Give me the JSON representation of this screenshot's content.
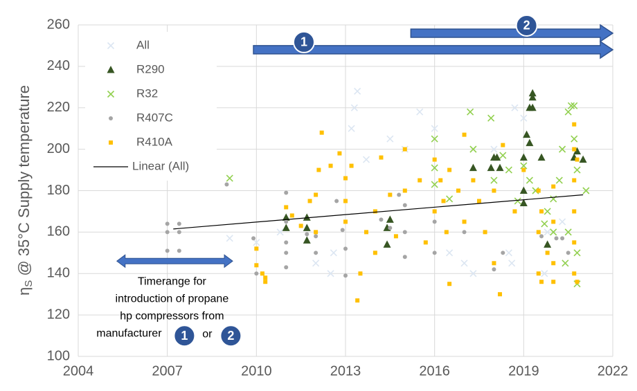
{
  "chart_data": {
    "type": "scatter",
    "y_label": {
      "symbol": "η",
      "sub": "S",
      "rest": " @ 35°C Supply temperature"
    },
    "xlim": [
      2004,
      2022
    ],
    "xticks": [
      2004,
      2007,
      2010,
      2013,
      2016,
      2019,
      2022
    ],
    "ylim": [
      100,
      260
    ],
    "yticks": [
      100,
      120,
      140,
      160,
      180,
      200,
      220,
      240,
      260
    ],
    "grid": true,
    "legend": "top-left",
    "series": [
      {
        "name": "All",
        "marker": "x",
        "color": "#dce6f2",
        "x": [
          2009.1,
          2010,
          2010.8,
          2012,
          2012.5,
          2012.6,
          2013.2,
          2013.3,
          2013.4,
          2013.7,
          2014.5,
          2015,
          2015.5,
          2016,
          2016.5,
          2017,
          2017.3,
          2018,
          2018.5,
          2018.6,
          2018.7,
          2019,
          2019.7,
          2019.8,
          2020.3
        ],
        "values": [
          157,
          155,
          160,
          145,
          140,
          150,
          210,
          220,
          228,
          195,
          205,
          200,
          218,
          210,
          150,
          145,
          140,
          200,
          150,
          145,
          220,
          215,
          140,
          160,
          165
        ]
      },
      {
        "name": "R290",
        "marker": "triangle",
        "color": "#375623",
        "x": [
          2011,
          2011,
          2011.7,
          2011.7,
          2011.7,
          2014.4,
          2014.4,
          2014.5,
          2017.3,
          2017.9,
          2018,
          2018.1,
          2018.2,
          2019,
          2019,
          2019.1,
          2019.2,
          2019.3,
          2019.3,
          2019.3,
          2019.2,
          2019.6,
          2019.8,
          2020.7,
          2020.8,
          2021,
          2019
        ],
        "values": [
          167,
          162,
          167,
          162,
          156,
          162,
          154,
          166,
          191,
          191,
          196,
          196,
          191,
          196,
          174,
          207,
          220,
          227,
          225,
          220,
          203,
          196,
          154,
          196,
          199,
          195,
          180
        ]
      },
      {
        "name": "R32",
        "marker": "x",
        "color": "#92d050",
        "x": [
          2009.1,
          2016,
          2016,
          2016,
          2016.5,
          2017.2,
          2017.3,
          2017.9,
          2018,
          2018.3,
          2018.5,
          2018.8,
          2019,
          2019.2,
          2019.4,
          2019.7,
          2019.8,
          2020,
          2020,
          2020.2,
          2020.3,
          2020.5,
          2020.6,
          2020.7,
          2020.7,
          2020.8,
          2020.8,
          2020.8,
          2021.1,
          2020.5,
          2020.4
        ],
        "values": [
          186,
          205,
          191,
          183,
          176,
          218,
          200,
          215,
          185,
          197,
          190,
          175,
          192,
          185,
          180,
          164,
          170,
          160,
          176,
          185,
          200,
          218,
          221,
          221,
          205,
          190,
          150,
          135,
          180,
          160,
          145
        ]
      },
      {
        "name": "R407C",
        "marker": "circle",
        "color": "#a5a5a5",
        "x": [
          2007,
          2007,
          2007,
          2007.4,
          2007.4,
          2007.4,
          2009,
          2009.9,
          2010,
          2011,
          2011,
          2011,
          2011,
          2011,
          2011.7,
          2012,
          2012,
          2012.7,
          2012.9,
          2013,
          2013,
          2014.2,
          2014.5,
          2014.8,
          2015,
          2015,
          2015,
          2016,
          2016,
          2017,
          2018,
          2018.3,
          2019.6,
          2020.1,
          2020.3,
          2020.5
        ],
        "values": [
          164,
          160,
          151,
          164,
          160,
          151,
          183,
          157,
          140,
          179,
          165,
          155,
          150,
          143,
          159,
          158,
          150,
          175,
          161,
          139,
          152,
          166,
          162,
          178,
          160,
          148,
          173,
          165,
          150,
          160,
          142,
          150,
          158,
          157,
          157,
          150
        ]
      },
      {
        "name": "R410A",
        "marker": "square",
        "color": "#ffc000",
        "x": [
          2010,
          2010,
          2010.2,
          2010.3,
          2010.3,
          2011,
          2011.2,
          2011.5,
          2011.8,
          2012,
          2012,
          2012.1,
          2012.2,
          2012.5,
          2012.8,
          2013,
          2013,
          2013,
          2013.2,
          2013.4,
          2013.5,
          2013.7,
          2014,
          2014,
          2014.2,
          2014.5,
          2014.7,
          2015,
          2015,
          2015.5,
          2015.7,
          2016,
          2016,
          2016.2,
          2016.3,
          2016.4,
          2016.5,
          2016.5,
          2016.8,
          2017,
          2017,
          2017.3,
          2017.5,
          2017.7,
          2018,
          2018,
          2018.2,
          2018.3,
          2018.7,
          2019,
          2019.5,
          2019.5,
          2019.5,
          2019.6,
          2019.6,
          2019.8,
          2020,
          2020,
          2020,
          2020,
          2020.7,
          2020.7,
          2020.7,
          2020.7,
          2020.7,
          2020.7,
          2020.8,
          2020.8
        ],
        "values": [
          152,
          144,
          140,
          136,
          138,
          172,
          168,
          163,
          175,
          160,
          178,
          190,
          208,
          192,
          198,
          175,
          186,
          165,
          192,
          127,
          140,
          160,
          170,
          150,
          196,
          178,
          158,
          180,
          200,
          185,
          155,
          195,
          170,
          185,
          175,
          160,
          190,
          135,
          180,
          165,
          207,
          185,
          175,
          160,
          180,
          145,
          130,
          202,
          170,
          190,
          180,
          160,
          140,
          136,
          170,
          150,
          182,
          165,
          145,
          136,
          212,
          200,
          185,
          170,
          155,
          140,
          136,
          195
        ]
      }
    ],
    "trendline": {
      "name": "Linear (All)",
      "color": "#000000",
      "x": [
        2007.2,
        2021
      ],
      "values": [
        161.5,
        178
      ]
    },
    "ranges": [
      {
        "label": "1",
        "x": [
          2009.9,
          2022
        ],
        "y": 248,
        "label_x": 2011.6
      },
      {
        "label": "2",
        "x": [
          2015.2,
          2022
        ],
        "y": 256,
        "label_x": 2019.1
      }
    ],
    "timerange": {
      "x": [
        2005.3,
        2009.2
      ],
      "y": 146,
      "lines": [
        "Timerange for",
        "introduction of propane",
        "hp compressors from",
        "manufacturer"
      ],
      "markers": [
        "1",
        "or",
        "2"
      ]
    }
  }
}
